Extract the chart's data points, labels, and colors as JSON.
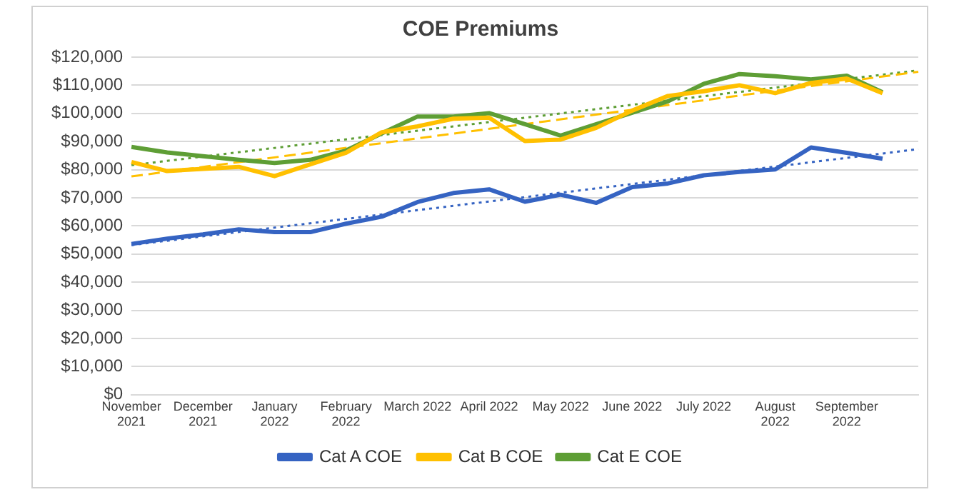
{
  "chart_data": {
    "type": "line",
    "title": "COE Premiums",
    "categories": [
      "November 2021",
      null,
      "December 2021",
      null,
      "January 2022",
      null,
      "February 2022",
      null,
      "March 2022",
      null,
      "April 2022",
      null,
      "May 2022",
      null,
      "June 2022",
      null,
      "July 2022",
      null,
      "August 2022",
      null,
      "September 2022",
      null,
      null
    ],
    "series": [
      {
        "name": "Cat A COE",
        "color": "#3563c2",
        "values": [
          53600,
          55500,
          57000,
          58800,
          57800,
          57800,
          60800,
          63300,
          68500,
          71700,
          73000,
          68600,
          71100,
          68200,
          73800,
          75100,
          78000,
          79200,
          80100,
          87900,
          86000,
          83900,
          null
        ]
      },
      {
        "name": "Cat B COE",
        "color": "#ffc000",
        "values": [
          82700,
          79500,
          80300,
          81000,
          77700,
          81900,
          86000,
          93300,
          95400,
          98100,
          98500,
          90200,
          90700,
          94900,
          101000,
          106200,
          107900,
          110000,
          107200,
          110800,
          112400,
          107200,
          null
        ]
      },
      {
        "name": "Cat E COE",
        "color": "#5e9e35",
        "values": [
          88100,
          86100,
          84800,
          83500,
          82400,
          83500,
          86800,
          92900,
          98900,
          98900,
          100100,
          96200,
          92100,
          96200,
          100200,
          104300,
          110500,
          114000,
          113200,
          112100,
          113400,
          107500,
          null
        ]
      },
      {
        "color": "#3563c2",
        "line_style": "dotted",
        "values": [
          53200,
          null,
          null,
          null,
          null,
          null,
          null,
          null,
          null,
          null,
          null,
          null,
          null,
          null,
          null,
          null,
          null,
          null,
          null,
          null,
          null,
          null,
          87300
        ]
      },
      {
        "color": "#ffc000",
        "line_style": "dashed",
        "values": [
          77600,
          null,
          null,
          null,
          null,
          null,
          null,
          null,
          null,
          null,
          null,
          null,
          null,
          null,
          null,
          null,
          null,
          null,
          null,
          null,
          null,
          null,
          114800
        ]
      },
      {
        "color": "#5e9e35",
        "line_style": "dotted",
        "values": [
          81600,
          null,
          null,
          null,
          null,
          null,
          null,
          null,
          null,
          null,
          null,
          null,
          null,
          null,
          null,
          null,
          null,
          null,
          null,
          null,
          null,
          null,
          115300
        ]
      }
    ],
    "ylim": [
      0,
      120000
    ],
    "yticks": [
      {
        "value": 0,
        "label": "$0"
      },
      {
        "value": 10000,
        "label": "$10,000"
      },
      {
        "value": 20000,
        "label": "$20,000"
      },
      {
        "value": 30000,
        "label": "$30,000"
      },
      {
        "value": 40000,
        "label": "$40,000"
      },
      {
        "value": 50000,
        "label": "$50,000"
      },
      {
        "value": 60000,
        "label": "$60,000"
      },
      {
        "value": 70000,
        "label": "$70,000"
      },
      {
        "value": 80000,
        "label": "$80,000"
      },
      {
        "value": 90000,
        "label": "$90,000"
      },
      {
        "value": 100000,
        "label": "$100,000"
      },
      {
        "value": 110000,
        "label": "$110,000"
      },
      {
        "value": 120000,
        "label": "$120,000"
      }
    ],
    "grid": "y",
    "legend": "bottom",
    "marker": "none",
    "line_style": "solid"
  }
}
